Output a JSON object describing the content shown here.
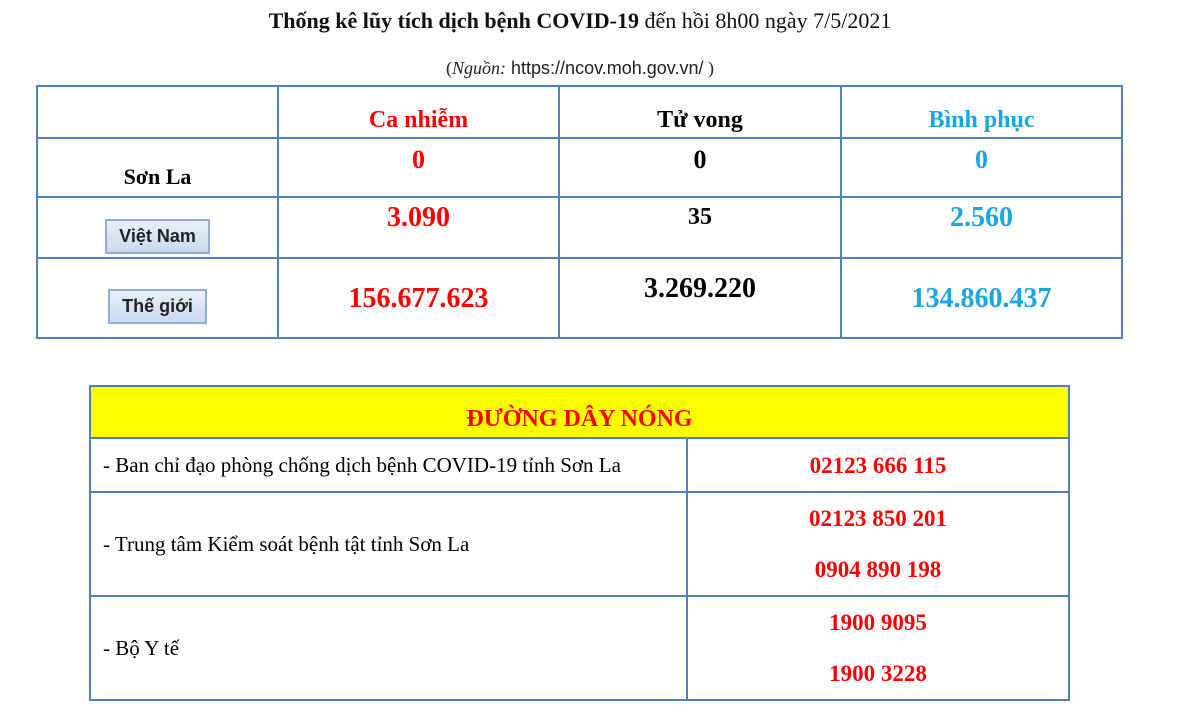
{
  "title": {
    "bold": "Thống kê lũy tích dịch bệnh COVID-19",
    "rest": " đến hồi 8h00 ngày 7/5/2021"
  },
  "source": {
    "prefix": "(",
    "label": "Nguồn:",
    "url": " https://ncov.moh.gov.vn/",
    "suffix": " )"
  },
  "stats": {
    "headers": [
      "Ca nhiễm",
      "Tử vong",
      "Bình phục"
    ],
    "rows": [
      {
        "label": "Sơn La",
        "values": [
          "0",
          "0",
          "0"
        ]
      },
      {
        "label": "Việt Nam",
        "values": [
          "3.090",
          "35",
          "2.560"
        ]
      },
      {
        "label": "Thế giới",
        "values": [
          "156.677.623",
          "3.269.220",
          "134.860.437"
        ]
      }
    ]
  },
  "hotline": {
    "title": "ĐƯỜNG DÂY NÓNG",
    "rows": [
      {
        "label": "- Ban chỉ đạo phòng chống dịch bệnh COVID-19 tỉnh Sơn La",
        "phones": [
          "02123 666 115"
        ]
      },
      {
        "label": "- Trung tâm Kiểm soát bệnh tật tỉnh Sơn La",
        "phones": [
          "02123 850 201",
          "0904 890 198"
        ]
      },
      {
        "label": "- Bộ Y tế",
        "phones": [
          "1900 9095",
          "1900 3228"
        ]
      }
    ]
  },
  "colors": {
    "infected": "#ff0000",
    "deaths": "#000000",
    "recovered": "#1aa6e0",
    "border": "#4f81bd",
    "hotline_bg": "#ffff00"
  }
}
